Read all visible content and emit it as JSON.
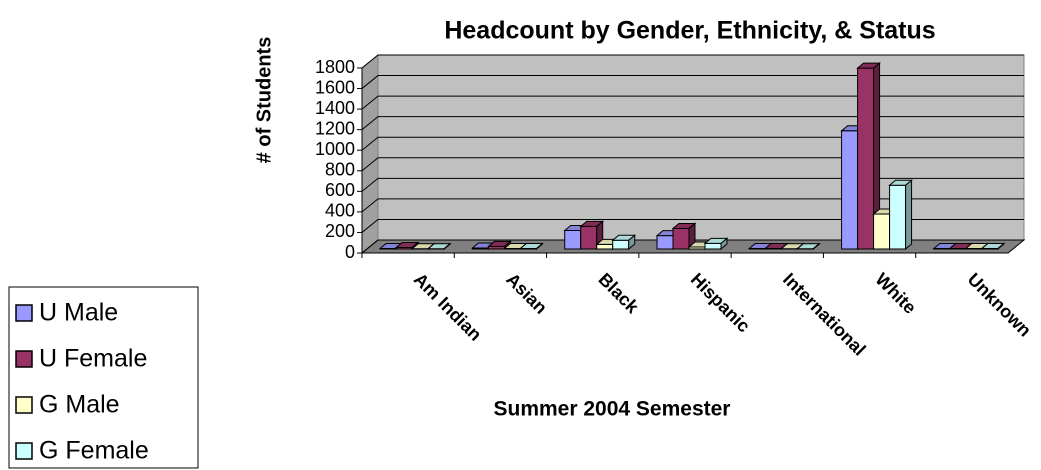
{
  "chart_data": {
    "type": "bar3d",
    "title": "Headcount by Gender, Ethnicity, & Status",
    "x_label": "Summer 2004 Semester",
    "y_label": "# of Students",
    "categories": [
      "Am Indian",
      "Asian",
      "Black",
      "Hispanic",
      "International",
      "White",
      "Unknown"
    ],
    "series": [
      {
        "name": "U Male",
        "color": "#9999ff",
        "values": [
          5,
          10,
          180,
          130,
          5,
          1150,
          5
        ]
      },
      {
        "name": "U Female",
        "color": "#993366",
        "values": [
          15,
          25,
          220,
          200,
          5,
          1760,
          5
        ]
      },
      {
        "name": "G Male",
        "color": "#ffffcc",
        "values": [
          3,
          5,
          45,
          20,
          3,
          340,
          5
        ]
      },
      {
        "name": "G Female",
        "color": "#ccffff",
        "values": [
          3,
          5,
          85,
          55,
          3,
          620,
          5
        ]
      }
    ],
    "ylim": [
      0,
      1800
    ],
    "yticks": [
      0,
      200,
      400,
      600,
      800,
      1000,
      1200,
      1400,
      1600,
      1800
    ],
    "grid": true,
    "legend": "left"
  }
}
